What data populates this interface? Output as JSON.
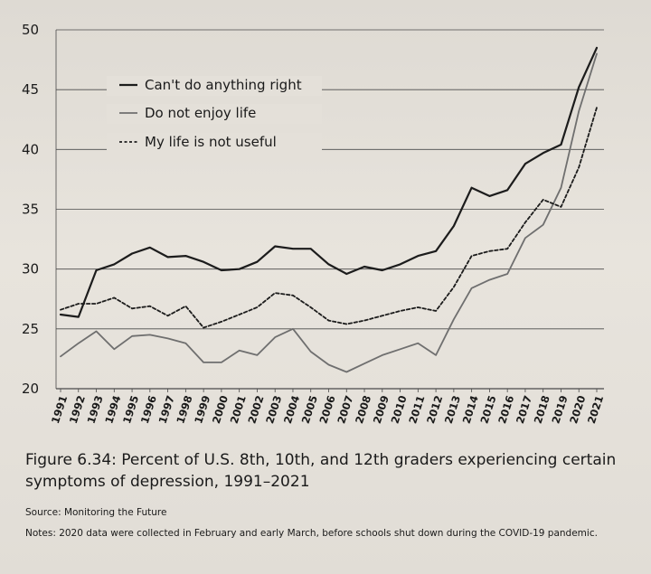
{
  "chart_data": {
    "type": "line",
    "title": "",
    "xlabel": "",
    "ylabel": "",
    "ylim": [
      20,
      50
    ],
    "yticks": [
      20,
      25,
      30,
      35,
      40,
      45,
      50
    ],
    "grid": "horizontal",
    "legend_position": "top-left",
    "categories": [
      "1991",
      "1992",
      "1993",
      "1994",
      "1995",
      "1996",
      "1997",
      "1998",
      "1999",
      "2000",
      "2001",
      "2002",
      "2003",
      "2004",
      "2005",
      "2006",
      "2007",
      "2008",
      "2009",
      "2010",
      "2011",
      "2012",
      "2013",
      "2014",
      "2015",
      "2016",
      "2017",
      "2018",
      "2019",
      "2020",
      "2021"
    ],
    "series": [
      {
        "name": "Can't do anything right",
        "style": "solid-dark",
        "color": "#1c1c1c",
        "values": [
          26.2,
          26.0,
          29.9,
          30.4,
          31.3,
          31.8,
          31.0,
          31.1,
          30.6,
          29.9,
          30.0,
          30.6,
          31.9,
          31.7,
          31.7,
          30.4,
          29.6,
          30.2,
          29.9,
          30.4,
          31.1,
          31.5,
          33.6,
          36.8,
          36.1,
          36.6,
          38.8,
          39.7,
          40.4,
          45.2,
          48.5
        ]
      },
      {
        "name": "Do not enjoy life",
        "style": "solid-gray",
        "color": "#6f6f6f",
        "values": [
          22.7,
          23.8,
          24.8,
          23.3,
          24.4,
          24.5,
          24.2,
          23.8,
          22.2,
          22.2,
          23.2,
          22.8,
          24.3,
          25.0,
          23.1,
          22.0,
          21.4,
          22.1,
          22.8,
          23.3,
          23.8,
          22.8,
          25.8,
          28.4,
          29.1,
          29.6,
          32.6,
          33.7,
          36.8,
          43.2,
          48.0
        ]
      },
      {
        "name": "My life is not useful",
        "style": "dashed",
        "color": "#1c1c1c",
        "values": [
          26.6,
          27.1,
          27.1,
          27.6,
          26.7,
          26.9,
          26.1,
          26.9,
          25.1,
          25.6,
          26.2,
          26.8,
          28.0,
          27.8,
          26.8,
          25.7,
          25.4,
          25.7,
          26.1,
          26.5,
          26.8,
          26.5,
          28.5,
          31.1,
          31.5,
          31.7,
          33.9,
          35.8,
          35.2,
          38.5,
          43.5
        ]
      }
    ]
  },
  "caption": "Figure 6.34: Percent of U.S. 8th, 10th, and 12th graders experiencing certain symptoms of depression, 1991–2021",
  "source": "Source: Monitoring the Future",
  "notes": "Notes: 2020 data were collected in February and early March, before schools shut down during the COVID-19 pandemic."
}
